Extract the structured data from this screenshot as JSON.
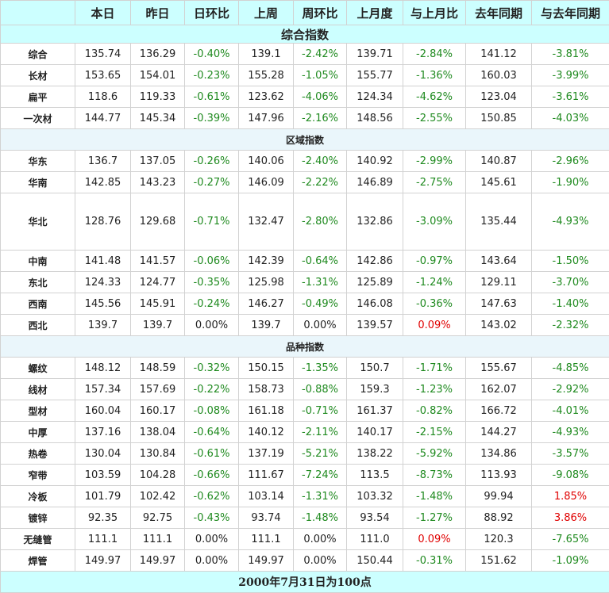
{
  "headers": [
    "",
    "本日",
    "昨日",
    "日环比",
    "上周",
    "周环比",
    "上月度",
    "与上月比",
    "去年同期",
    "与去年同期"
  ],
  "sections": [
    {
      "title": "综合指数",
      "rows": [
        [
          "综合",
          "135.74",
          "136.29",
          "-0.40%",
          "139.1",
          "-2.42%",
          "139.71",
          "-2.84%",
          "141.12",
          "-3.81%"
        ],
        [
          "长材",
          "153.65",
          "154.01",
          "-0.23%",
          "155.28",
          "-1.05%",
          "155.77",
          "-1.36%",
          "160.03",
          "-3.99%"
        ],
        [
          "扁平",
          "118.6",
          "119.33",
          "-0.61%",
          "123.62",
          "-4.06%",
          "124.34",
          "-4.62%",
          "123.04",
          "-3.61%"
        ],
        [
          "一次材",
          "144.77",
          "145.34",
          "-0.39%",
          "147.96",
          "-2.16%",
          "148.56",
          "-2.55%",
          "150.85",
          "-4.03%"
        ]
      ]
    },
    {
      "title": "区域指数",
      "rows": [
        [
          "华东",
          "136.7",
          "137.05",
          "-0.26%",
          "140.06",
          "-2.40%",
          "140.92",
          "-2.99%",
          "140.87",
          "-2.96%"
        ],
        [
          "华南",
          "142.85",
          "143.23",
          "-0.27%",
          "146.09",
          "-2.22%",
          "146.89",
          "-2.75%",
          "145.61",
          "-1.90%"
        ],
        [
          "华北",
          "128.76",
          "129.68",
          "-0.71%",
          "132.47",
          "-2.80%",
          "132.86",
          "-3.09%",
          "135.44",
          "-4.93%"
        ],
        [
          "中南",
          "141.48",
          "141.57",
          "-0.06%",
          "142.39",
          "-0.64%",
          "142.86",
          "-0.97%",
          "143.64",
          "-1.50%"
        ],
        [
          "东北",
          "124.33",
          "124.77",
          "-0.35%",
          "125.98",
          "-1.31%",
          "125.89",
          "-1.24%",
          "129.11",
          "-3.70%"
        ],
        [
          "西南",
          "145.56",
          "145.91",
          "-0.24%",
          "146.27",
          "-0.49%",
          "146.08",
          "-0.36%",
          "147.63",
          "-1.40%"
        ],
        [
          "西北",
          "139.7",
          "139.7",
          "0.00%",
          "139.7",
          "0.00%",
          "139.57",
          "0.09%",
          "143.02",
          "-2.32%"
        ]
      ]
    },
    {
      "title": "品种指数",
      "rows": [
        [
          "螺纹",
          "148.12",
          "148.59",
          "-0.32%",
          "150.15",
          "-1.35%",
          "150.7",
          "-1.71%",
          "155.67",
          "-4.85%"
        ],
        [
          "线材",
          "157.34",
          "157.69",
          "-0.22%",
          "158.73",
          "-0.88%",
          "159.3",
          "-1.23%",
          "162.07",
          "-2.92%"
        ],
        [
          "型材",
          "160.04",
          "160.17",
          "-0.08%",
          "161.18",
          "-0.71%",
          "161.37",
          "-0.82%",
          "166.72",
          "-4.01%"
        ],
        [
          "中厚",
          "137.16",
          "138.04",
          "-0.64%",
          "140.12",
          "-2.11%",
          "140.17",
          "-2.15%",
          "144.27",
          "-4.93%"
        ],
        [
          "热卷",
          "130.04",
          "130.84",
          "-0.61%",
          "137.19",
          "-5.21%",
          "138.22",
          "-5.92%",
          "134.86",
          "-3.57%"
        ],
        [
          "窄带",
          "103.59",
          "104.28",
          "-0.66%",
          "111.67",
          "-7.24%",
          "113.5",
          "-8.73%",
          "113.93",
          "-9.08%"
        ],
        [
          "冷板",
          "101.79",
          "102.42",
          "-0.62%",
          "103.14",
          "-1.31%",
          "103.32",
          "-1.48%",
          "99.94",
          "1.85%"
        ],
        [
          "镀锌",
          "92.35",
          "92.75",
          "-0.43%",
          "93.74",
          "-1.48%",
          "93.54",
          "-1.27%",
          "88.92",
          "3.86%"
        ],
        [
          "无缝管",
          "111.1",
          "111.1",
          "0.00%",
          "111.1",
          "0.00%",
          "111.0",
          "0.09%",
          "120.3",
          "-7.65%"
        ],
        [
          "焊管",
          "149.97",
          "149.97",
          "0.00%",
          "149.97",
          "0.00%",
          "150.44",
          "-0.31%",
          "151.62",
          "-1.09%"
        ]
      ]
    }
  ],
  "footer": "2000年7月31日为100点",
  "colors": {
    "negative": "#1f8a1f",
    "positive": "#e00000",
    "header_bg": "#ccffff",
    "section_bg": "#eaf6fb"
  }
}
